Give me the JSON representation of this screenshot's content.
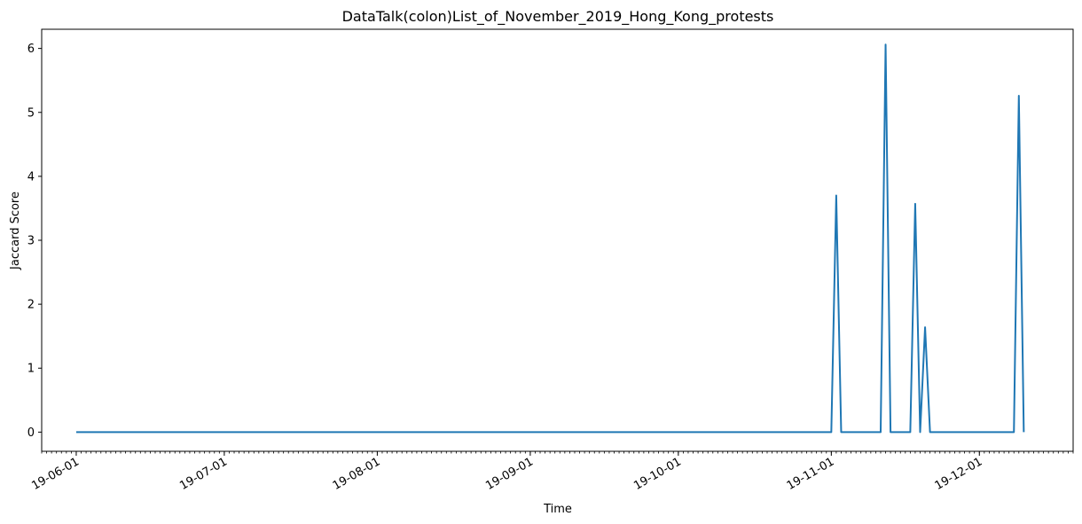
{
  "chart_data": {
    "type": "line",
    "title": "DataTalk(colon)List_of_November_2019_Hong_Kong_protests",
    "xlabel": "Time",
    "ylabel": "Jaccard Score",
    "x_type": "date",
    "xlim": [
      "2019-05-25",
      "2019-12-20"
    ],
    "ylim": [
      -0.3,
      6.3
    ],
    "yticks": [
      0,
      1,
      2,
      3,
      4,
      5,
      6
    ],
    "xticks": [
      {
        "date": "2019-06-01",
        "label": "19-06-01"
      },
      {
        "date": "2019-07-01",
        "label": "19-07-01"
      },
      {
        "date": "2019-08-01",
        "label": "19-08-01"
      },
      {
        "date": "2019-09-01",
        "label": "19-09-01"
      },
      {
        "date": "2019-10-01",
        "label": "19-10-01"
      },
      {
        "date": "2019-11-01",
        "label": "19-11-01"
      },
      {
        "date": "2019-12-01",
        "label": "19-12-01"
      }
    ],
    "minor_ticks": "daily",
    "grid": false,
    "legend": "none",
    "color": "#1f77b4",
    "series": [
      {
        "points": [
          [
            "2019-06-01",
            0
          ],
          [
            "2019-11-01",
            0
          ],
          [
            "2019-11-02",
            3.7
          ],
          [
            "2019-11-03",
            0
          ],
          [
            "2019-11-11",
            0
          ],
          [
            "2019-11-12",
            6.06
          ],
          [
            "2019-11-13",
            0
          ],
          [
            "2019-11-17",
            0
          ],
          [
            "2019-11-18",
            3.57
          ],
          [
            "2019-11-19",
            0
          ],
          [
            "2019-11-20",
            1.64
          ],
          [
            "2019-11-21",
            0
          ],
          [
            "2019-12-08",
            0
          ],
          [
            "2019-12-09",
            5.26
          ],
          [
            "2019-12-10",
            0
          ]
        ]
      }
    ]
  }
}
